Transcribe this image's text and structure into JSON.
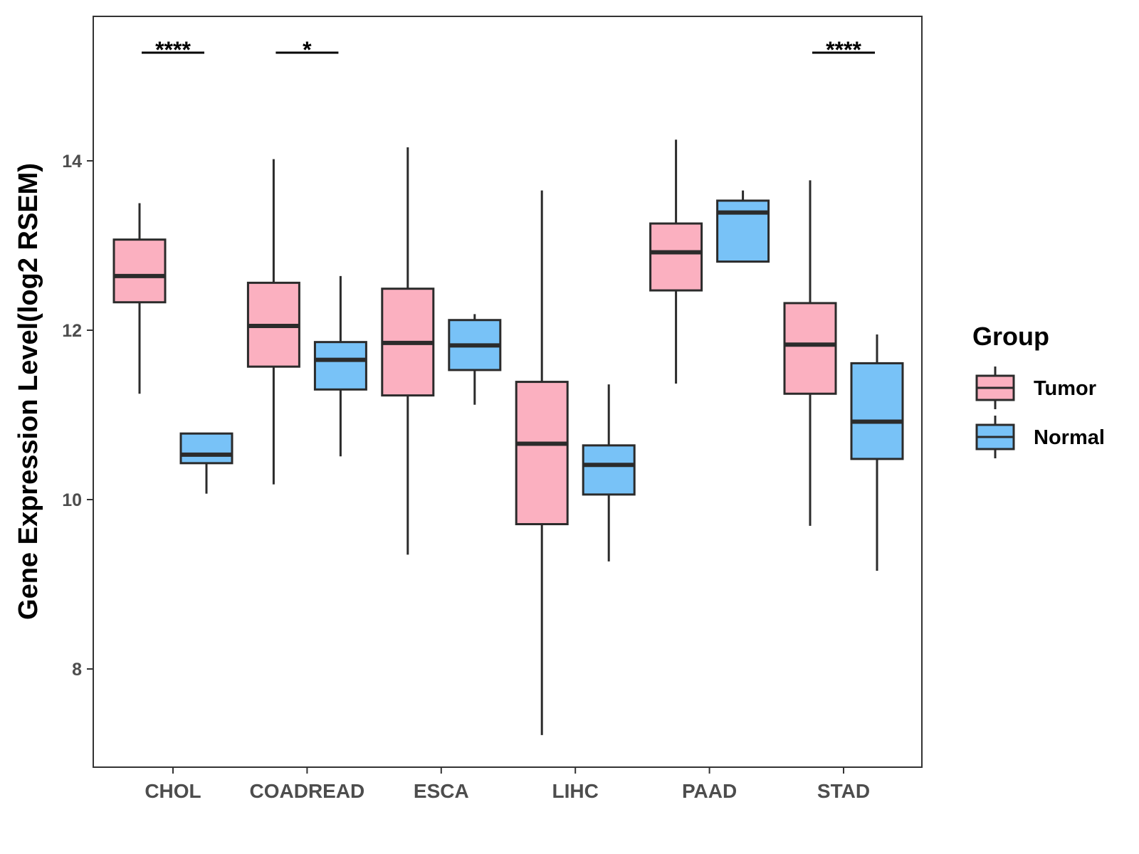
{
  "chart_data": {
    "type": "boxplot",
    "ylabel": "Gene Expression Level(log2 RSEM)",
    "xlabel": "",
    "ylim": [
      6.8,
      15.7
    ],
    "yticks": [
      8,
      10,
      12,
      14
    ],
    "ytick_labels": [
      "8",
      "10",
      "12",
      "14"
    ],
    "categories": [
      "CHOL",
      "COADREAD",
      "ESCA",
      "LIHC",
      "PAAD",
      "STAD"
    ],
    "legend": {
      "title": "Group",
      "position": "right",
      "entries": [
        "Tumor",
        "Normal"
      ]
    },
    "series": [
      {
        "name": "Tumor",
        "color": "#FBB0C0",
        "boxes": [
          {
            "category": "CHOL",
            "min": 11.25,
            "q1": 12.33,
            "median": 12.64,
            "q3": 13.07,
            "max": 13.5
          },
          {
            "category": "COADREAD",
            "min": 10.18,
            "q1": 11.57,
            "median": 12.05,
            "q3": 12.56,
            "max": 14.02
          },
          {
            "category": "ESCA",
            "min": 9.35,
            "q1": 11.23,
            "median": 11.85,
            "q3": 12.49,
            "max": 14.16
          },
          {
            "category": "LIHC",
            "min": 7.22,
            "q1": 9.71,
            "median": 10.66,
            "q3": 11.39,
            "max": 13.65
          },
          {
            "category": "PAAD",
            "min": 11.37,
            "q1": 12.47,
            "median": 12.92,
            "q3": 13.26,
            "max": 14.25
          },
          {
            "category": "STAD",
            "min": 9.69,
            "q1": 11.25,
            "median": 11.83,
            "q3": 12.32,
            "max": 13.77
          }
        ]
      },
      {
        "name": "Normal",
        "color": "#78C2F7",
        "boxes": [
          {
            "category": "CHOL",
            "min": 10.07,
            "q1": 10.43,
            "median": 10.53,
            "q3": 10.78,
            "max": 10.78
          },
          {
            "category": "COADREAD",
            "min": 10.51,
            "q1": 11.3,
            "median": 11.65,
            "q3": 11.86,
            "max": 12.64
          },
          {
            "category": "ESCA",
            "min": 11.12,
            "q1": 11.53,
            "median": 11.82,
            "q3": 12.12,
            "max": 12.19
          },
          {
            "category": "LIHC",
            "min": 9.27,
            "q1": 10.06,
            "median": 10.41,
            "q3": 10.64,
            "max": 11.36
          },
          {
            "category": "PAAD",
            "min": 12.81,
            "q1": 12.81,
            "median": 13.39,
            "q3": 13.53,
            "max": 13.65
          },
          {
            "category": "STAD",
            "min": 9.16,
            "q1": 10.48,
            "median": 10.92,
            "q3": 11.61,
            "max": 11.95
          }
        ]
      }
    ],
    "significance": [
      {
        "category": "CHOL",
        "label": "****"
      },
      {
        "category": "COADREAD",
        "label": "*"
      },
      {
        "category": "STAD",
        "label": "****"
      }
    ]
  }
}
